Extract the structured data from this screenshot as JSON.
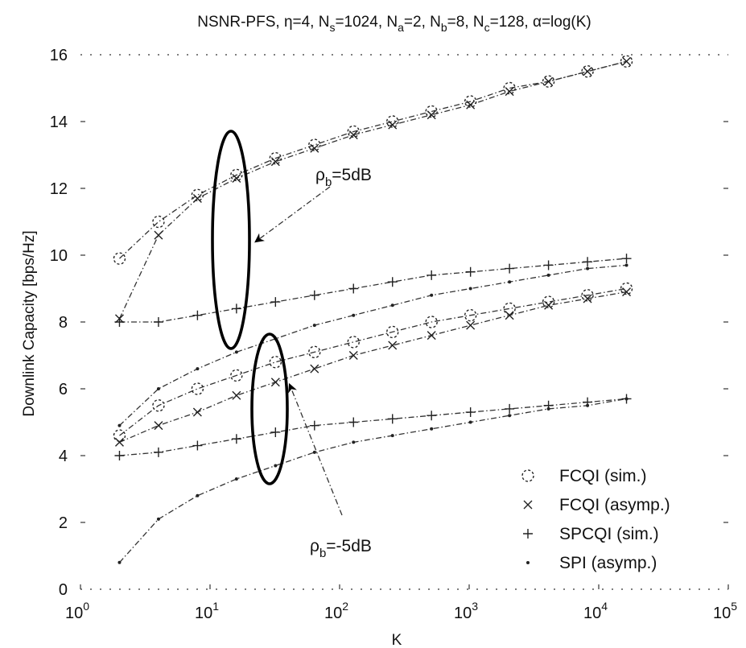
{
  "chart_data": {
    "type": "line",
    "title": "NSNR-PFS, η=4, N_s=1024, N_a=2, N_b=8, N_c=128, α=log(K)",
    "title_parts": {
      "p1": "NSNR-PFS, η=4, N",
      "s1": "s",
      "p2": "=1024, N",
      "s2": "a",
      "p3": "=2, N",
      "s3": "b",
      "p4": "=8, N",
      "s4": "c",
      "p5": "=128, α=log(K)"
    },
    "xlabel": "K",
    "ylabel": "Downlink Capacity [bps/Hz]",
    "xscale": "log",
    "xlim": [
      1,
      100000
    ],
    "ylim": [
      0,
      16
    ],
    "x_ticks": [
      {
        "base": "10",
        "exp": "0"
      },
      {
        "base": "10",
        "exp": "1"
      },
      {
        "base": "10",
        "exp": "2"
      },
      {
        "base": "10",
        "exp": "3"
      },
      {
        "base": "10",
        "exp": "4"
      },
      {
        "base": "10",
        "exp": "5"
      }
    ],
    "y_ticks": [
      "0",
      "2",
      "4",
      "6",
      "8",
      "10",
      "12",
      "14",
      "16"
    ],
    "grid": true,
    "legend_position": "bottom-right",
    "legend": [
      {
        "label": "FCQI (sim.)",
        "marker": "circle"
      },
      {
        "label": "FCQI (asymp.)",
        "marker": "x"
      },
      {
        "label": "SPCQI (sim.)",
        "marker": "plus"
      },
      {
        "label": "SPI (asymp.)",
        "marker": "point"
      }
    ],
    "annotations": {
      "rho_high": {
        "prefix": "ρ",
        "sub": "b",
        "suffix": "=5dB"
      },
      "rho_low": {
        "prefix": "ρ",
        "sub": "b",
        "suffix": "=-5dB"
      }
    },
    "x": [
      2,
      4,
      8,
      16,
      32,
      64,
      128,
      256,
      512,
      1024,
      2048,
      4096,
      8192,
      16384
    ],
    "series": [
      {
        "group": "5dB",
        "marker": "circle",
        "values": [
          9.9,
          11.0,
          11.8,
          12.4,
          12.9,
          13.3,
          13.7,
          14.0,
          14.3,
          14.6,
          15.0,
          15.2,
          15.5,
          15.8
        ]
      },
      {
        "group": "5dB",
        "marker": "x",
        "values": [
          8.1,
          10.6,
          11.7,
          12.3,
          12.8,
          13.2,
          13.6,
          13.9,
          14.2,
          14.5,
          14.9,
          15.2,
          15.5,
          15.8
        ]
      },
      {
        "group": "5dB",
        "marker": "plus",
        "values": [
          8.0,
          8.0,
          8.2,
          8.4,
          8.6,
          8.8,
          9.0,
          9.2,
          9.4,
          9.5,
          9.6,
          9.7,
          9.8,
          9.9
        ]
      },
      {
        "group": "5dB",
        "marker": "point",
        "values": [
          4.9,
          6.0,
          6.6,
          7.1,
          7.5,
          7.9,
          8.2,
          8.5,
          8.8,
          9.0,
          9.2,
          9.4,
          9.6,
          9.7
        ]
      },
      {
        "group": "-5dB",
        "marker": "circle",
        "values": [
          4.6,
          5.5,
          6.0,
          6.4,
          6.8,
          7.1,
          7.4,
          7.7,
          8.0,
          8.2,
          8.4,
          8.6,
          8.8,
          9.0
        ]
      },
      {
        "group": "-5dB",
        "marker": "x",
        "values": [
          4.4,
          4.9,
          5.3,
          5.8,
          6.2,
          6.6,
          7.0,
          7.3,
          7.6,
          7.9,
          8.2,
          8.5,
          8.7,
          8.9
        ]
      },
      {
        "group": "-5dB",
        "marker": "plus",
        "values": [
          4.0,
          4.1,
          4.3,
          4.5,
          4.7,
          4.9,
          5.0,
          5.1,
          5.2,
          5.3,
          5.4,
          5.5,
          5.6,
          5.7
        ]
      },
      {
        "group": "-5dB",
        "marker": "point",
        "values": [
          0.8,
          2.1,
          2.8,
          3.3,
          3.7,
          4.1,
          4.4,
          4.6,
          4.8,
          5.0,
          5.2,
          5.4,
          5.5,
          5.7
        ]
      }
    ]
  }
}
